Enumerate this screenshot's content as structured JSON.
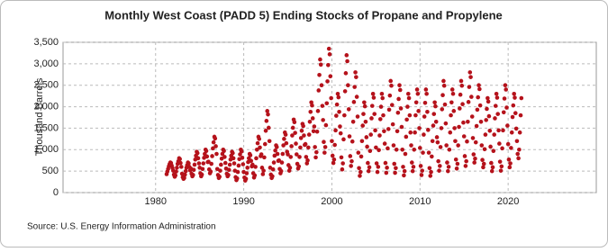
{
  "chart_data": {
    "type": "scatter",
    "title": "Monthly West Coast (PADD 5) Ending Stocks of Propane and Propylene",
    "y_label": "Thousand Barrels",
    "source": "Source: U.S. Energy Information Administration",
    "color": "#b5121b",
    "grid": true,
    "xlim": [
      1969.5,
      2030
    ],
    "xticks": [
      1980,
      1990,
      2000,
      2010,
      2020
    ],
    "ylim": [
      0,
      3500
    ],
    "yticks": [
      0,
      {
        "value": 500,
        "label": "500"
      },
      {
        "value": 1000,
        "label": "1,000"
      },
      {
        "value": 1500,
        "label": "1,500"
      },
      {
        "value": 2000,
        "label": "2,000"
      },
      {
        "value": 2500,
        "label": "2,500"
      },
      {
        "value": 3000,
        "label": "3,000"
      },
      {
        "value": 3500,
        "label": "3,500"
      }
    ],
    "x": [
      1981.25,
      1981.33,
      1981.42,
      1981.5,
      1981.58,
      1981.67,
      1981.75,
      1981.83,
      1981.92,
      1982,
      1982.08,
      1982.17,
      1982.25,
      1982.33,
      1982.42,
      1982.5,
      1982.58,
      1982.67,
      1982.75,
      1982.83,
      1982.92,
      1983,
      1983.08,
      1983.17,
      1983.25,
      1983.33,
      1983.42,
      1983.5,
      1983.58,
      1983.67,
      1983.75,
      1983.83,
      1983.92,
      1984,
      1984.08,
      1984.17,
      1984.25,
      1984.33,
      1984.42,
      1984.5,
      1984.58,
      1984.67,
      1984.75,
      1984.83,
      1984.92,
      1985,
      1985.08,
      1985.17,
      1985.25,
      1985.33,
      1985.42,
      1985.5,
      1985.58,
      1985.67,
      1985.75,
      1985.83,
      1985.92,
      1986,
      1986.08,
      1986.17,
      1986.25,
      1986.33,
      1986.42,
      1986.5,
      1986.58,
      1986.67,
      1986.75,
      1986.83,
      1986.92,
      1987,
      1987.08,
      1987.17,
      1987.25,
      1987.33,
      1987.42,
      1987.5,
      1987.58,
      1987.67,
      1987.75,
      1987.83,
      1987.92,
      1988,
      1988.08,
      1988.17,
      1988.25,
      1988.33,
      1988.42,
      1988.5,
      1988.58,
      1988.67,
      1988.75,
      1988.83,
      1988.92,
      1989,
      1989.08,
      1989.17,
      1989.25,
      1989.33,
      1989.42,
      1989.5,
      1989.58,
      1989.67,
      1989.75,
      1989.83,
      1989.92,
      1990,
      1990.08,
      1990.17,
      1990.25,
      1990.33,
      1990.42,
      1990.5,
      1990.58,
      1990.67,
      1990.75,
      1990.83,
      1990.92,
      1991,
      1991.08,
      1991.17,
      1991.25,
      1991.33,
      1991.42,
      1991.5,
      1991.58,
      1991.67,
      1991.75,
      1991.83,
      1991.92,
      1992,
      1992.08,
      1992.17,
      1992.25,
      1992.33,
      1992.42,
      1992.5,
      1992.58,
      1992.67,
      1992.75,
      1992.83,
      1992.92,
      1993,
      1993.08,
      1993.17,
      1993.25,
      1993.33,
      1993.42,
      1993.5,
      1993.58,
      1993.67,
      1993.75,
      1993.83,
      1993.92,
      1994,
      1994.08,
      1994.17,
      1994.25,
      1994.33,
      1994.42,
      1994.5,
      1994.58,
      1994.67,
      1994.75,
      1994.83,
      1994.92,
      1995,
      1995.08,
      1995.17,
      1995.25,
      1995.33,
      1995.42,
      1995.5,
      1995.58,
      1995.67,
      1995.75,
      1995.83,
      1995.92,
      1996,
      1996.08,
      1996.17,
      1996.25,
      1996.33,
      1996.42,
      1996.5,
      1996.58,
      1996.67,
      1996.75,
      1996.83,
      1996.92,
      1997,
      1997.08,
      1997.17,
      1997.25,
      1997.33,
      1997.42,
      1997.5,
      1997.58,
      1997.67,
      1997.75,
      1997.83,
      1997.92,
      1998,
      1998.08,
      1998.17,
      1998.25,
      1998.33,
      1998.42,
      1998.5,
      1998.58,
      1998.67,
      1998.75,
      1998.83,
      1998.92,
      1999,
      1999.08,
      1999.17,
      1999.25,
      1999.33,
      1999.42,
      1999.5,
      1999.58,
      1999.67,
      1999.75,
      1999.83,
      1999.92,
      2000,
      2000.08,
      2000.17,
      2000.25,
      2000.33,
      2000.42,
      2000.5,
      2000.58,
      2000.67,
      2000.75,
      2000.83,
      2000.92,
      2001,
      2001.08,
      2001.17,
      2001.25,
      2001.33,
      2001.42,
      2001.5,
      2001.58,
      2001.67,
      2001.75,
      2001.83,
      2001.92,
      2002,
      2002.08,
      2002.17,
      2002.25,
      2002.33,
      2002.42,
      2002.5,
      2002.58,
      2002.67,
      2002.75,
      2002.83,
      2002.92,
      2003,
      2003.08,
      2003.17,
      2003.25,
      2003.33,
      2003.42,
      2003.5,
      2003.58,
      2003.67,
      2003.75,
      2003.83,
      2003.92,
      2004,
      2004.08,
      2004.17,
      2004.25,
      2004.33,
      2004.42,
      2004.5,
      2004.58,
      2004.67,
      2004.75,
      2004.83,
      2004.92,
      2005,
      2005.08,
      2005.17,
      2005.25,
      2005.33,
      2005.42,
      2005.5,
      2005.58,
      2005.67,
      2005.75,
      2005.83,
      2005.92,
      2006,
      2006.08,
      2006.17,
      2006.25,
      2006.33,
      2006.42,
      2006.5,
      2006.58,
      2006.67,
      2006.75,
      2006.83,
      2006.92,
      2007,
      2007.08,
      2007.17,
      2007.25,
      2007.33,
      2007.42,
      2007.5,
      2007.58,
      2007.67,
      2007.75,
      2007.83,
      2007.92,
      2008,
      2008.08,
      2008.17,
      2008.25,
      2008.33,
      2008.42,
      2008.5,
      2008.58,
      2008.67,
      2008.75,
      2008.83,
      2008.92,
      2009,
      2009.08,
      2009.17,
      2009.25,
      2009.33,
      2009.42,
      2009.5,
      2009.58,
      2009.67,
      2009.75,
      2009.83,
      2009.92,
      2010,
      2010.08,
      2010.17,
      2010.25,
      2010.33,
      2010.42,
      2010.5,
      2010.58,
      2010.67,
      2010.75,
      2010.83,
      2010.92,
      2011,
      2011.08,
      2011.17,
      2011.25,
      2011.33,
      2011.42,
      2011.5,
      2011.58,
      2011.67,
      2011.75,
      2011.83,
      2011.92,
      2012,
      2012.08,
      2012.17,
      2012.25,
      2012.33,
      2012.42,
      2012.5,
      2012.58,
      2012.67,
      2012.75,
      2012.83,
      2012.92,
      2013,
      2013.08,
      2013.17,
      2013.25,
      2013.33,
      2013.42,
      2013.5,
      2013.58,
      2013.67,
      2013.75,
      2013.83,
      2013.92,
      2014,
      2014.08,
      2014.17,
      2014.25,
      2014.33,
      2014.42,
      2014.5,
      2014.58,
      2014.67,
      2014.75,
      2014.83,
      2014.92,
      2015,
      2015.08,
      2015.17,
      2015.25,
      2015.33,
      2015.42,
      2015.5,
      2015.58,
      2015.67,
      2015.75,
      2015.83,
      2015.92,
      2016,
      2016.08,
      2016.17,
      2016.25,
      2016.33,
      2016.42,
      2016.5,
      2016.58,
      2016.67,
      2016.75,
      2016.83,
      2016.92,
      2017,
      2017.08,
      2017.17,
      2017.25,
      2017.33,
      2017.42,
      2017.5,
      2017.58,
      2017.67,
      2017.75,
      2017.83,
      2017.92,
      2018,
      2018.08,
      2018.17,
      2018.25,
      2018.33,
      2018.42,
      2018.5,
      2018.58,
      2018.67,
      2018.75,
      2018.83,
      2018.92,
      2019,
      2019.08,
      2019.17,
      2019.25,
      2019.33,
      2019.42,
      2019.5,
      2019.58,
      2019.67,
      2019.75,
      2019.83,
      2019.92,
      2020,
      2020.08,
      2020.17,
      2020.25,
      2020.33,
      2020.42,
      2020.5,
      2020.58,
      2020.67,
      2020.75,
      2020.83,
      2020.92,
      2021,
      2021.08,
      2021.17,
      2021.25,
      2021.33,
      2021.42,
      2021.5
    ],
    "values": [
      430,
      490,
      550,
      610,
      660,
      700,
      690,
      630,
      570,
      510,
      420,
      370,
      400,
      490,
      580,
      670,
      730,
      800,
      780,
      690,
      600,
      440,
      360,
      320,
      340,
      420,
      500,
      580,
      640,
      700,
      680,
      600,
      520,
      560,
      440,
      380,
      410,
      530,
      650,
      770,
      860,
      950,
      920,
      800,
      680,
      580,
      450,
      380,
      420,
      550,
      680,
      810,
      900,
      1000,
      970,
      840,
      710,
      720,
      540,
      450,
      490,
      670,
      850,
      1030,
      1170,
      1300,
      1260,
      1080,
      900,
      550,
      410,
      340,
      370,
      510,
      650,
      790,
      900,
      1000,
      970,
      830,
      690,
      560,
      440,
      380,
      410,
      530,
      650,
      770,
      860,
      950,
      920,
      800,
      680,
      510,
      360,
      290,
      330,
      480,
      630,
      780,
      890,
      1000,
      960,
      810,
      660,
      480,
      350,
      280,
      320,
      450,
      580,
      710,
      800,
      900,
      870,
      740,
      610,
      650,
      450,
      350,
      400,
      600,
      800,
      1000,
      1150,
      1300,
      1250,
      1050,
      850,
      890,
      580,
      430,
      510,
      820,
      1130,
      1440,
      1670,
      1900,
      1820,
      1510,
      1200,
      580,
      420,
      340,
      380,
      540,
      700,
      860,
      980,
      1100,
      1060,
      900,
      740,
      750,
      550,
      450,
      500,
      700,
      900,
      1100,
      1250,
      1400,
      1350,
      1150,
      950,
      890,
      640,
      510,
      580,
      830,
      1080,
      1330,
      1510,
      1700,
      1640,
      1390,
      1140,
      890,
      670,
      560,
      610,
      830,
      1050,
      1270,
      1440,
      1600,
      1550,
      1330,
      1110,
      1130,
      830,
      680,
      750,
      1050,
      1350,
      1650,
      1880,
      2100,
      2030,
      1730,
      1430,
      1540,
      1060,
      820,
      940,
      1420,
      1900,
      2380,
      2740,
      3100,
      2980,
      2500,
      2020,
      1690,
      1180,
      930,
      1060,
      1570,
      2080,
      2590,
      2970,
      3350,
      3220,
      2710,
      2200,
      1200,
      860,
      690,
      770,
      1110,
      1450,
      1790,
      2050,
      2300,
      2220,
      1880,
      1540,
      1380,
      820,
      540,
      680,
      1240,
      1800,
      2360,
      2780,
      3200,
      3060,
      2500,
      1940,
      1310,
      850,
      620,
      730,
      1190,
      1650,
      2110,
      2460,
      2800,
      2690,
      2230,
      1770,
      930,
      570,
      390,
      480,
      840,
      1200,
      1560,
      1830,
      2100,
      2010,
      1650,
      1290,
      1070,
      690,
      500,
      590,
      970,
      1350,
      1730,
      2020,
      2300,
      2210,
      1830,
      1450,
      1050,
      680,
      480,
      600,
      990,
      1330,
      1710,
      2000,
      2300,
      2200,
      1800,
      1430,
      1140,
      690,
      460,
      580,
      1030,
      1480,
      1930,
      2260,
      2600,
      2490,
      2040,
      1590,
      1100,
      670,
      460,
      570,
      1000,
      1430,
      1860,
      2180,
      2500,
      2390,
      1960,
      1530,
      1000,
      600,
      400,
      500,
      900,
      1300,
      1700,
      2000,
      2300,
      2200,
      1800,
      1400,
      1100,
      700,
      500,
      600,
      1000,
      1400,
      1800,
      2100,
      2400,
      2300,
      1900,
      1500,
      1040,
      620,
      410,
      510,
      930,
      1350,
      1770,
      2090,
      2400,
      2300,
      1880,
      1460,
      930,
      570,
      390,
      480,
      840,
      1200,
      1560,
      1830,
      2100,
      2010,
      1650,
      1290,
      1170,
      730,
      510,
      620,
      1060,
      1500,
      1940,
      2270,
      2600,
      2490,
      2050,
      1610,
      1100,
      700,
      500,
      600,
      1000,
      1400,
      1800,
      2100,
      2400,
      2300,
      1900,
      1500,
      1200,
      770,
      560,
      670,
      1100,
      1530,
      1960,
      2280,
      2600,
      2490,
      2060,
      1630,
      1310,
      850,
      620,
      730,
      1190,
      1650,
      2110,
      2460,
      2800,
      2690,
      2230,
      1770,
      1270,
      890,
      700,
      790,
      1170,
      1550,
      1930,
      2220,
      2500,
      2410,
      2030,
      1650,
      1100,
      760,
      590,
      670,
      1010,
      1350,
      1690,
      1950,
      2200,
      2120,
      1780,
      1440,
      1070,
      690,
      500,
      590,
      970,
      1350,
      1730,
      2020,
      2300,
      2210,
      1830,
      1450,
      1140,
      720,
      510,
      610,
      1030,
      1450,
      1870,
      2190,
      2500,
      2400,
      1980,
      1560,
      1130,
      770,
      590,
      680,
      1040,
      1400,
      1760,
      2030,
      2300,
      2210,
      1850,
      1490,
      1200,
      900,
      800,
      1000,
      1400,
      1800,
      2200
    ]
  }
}
